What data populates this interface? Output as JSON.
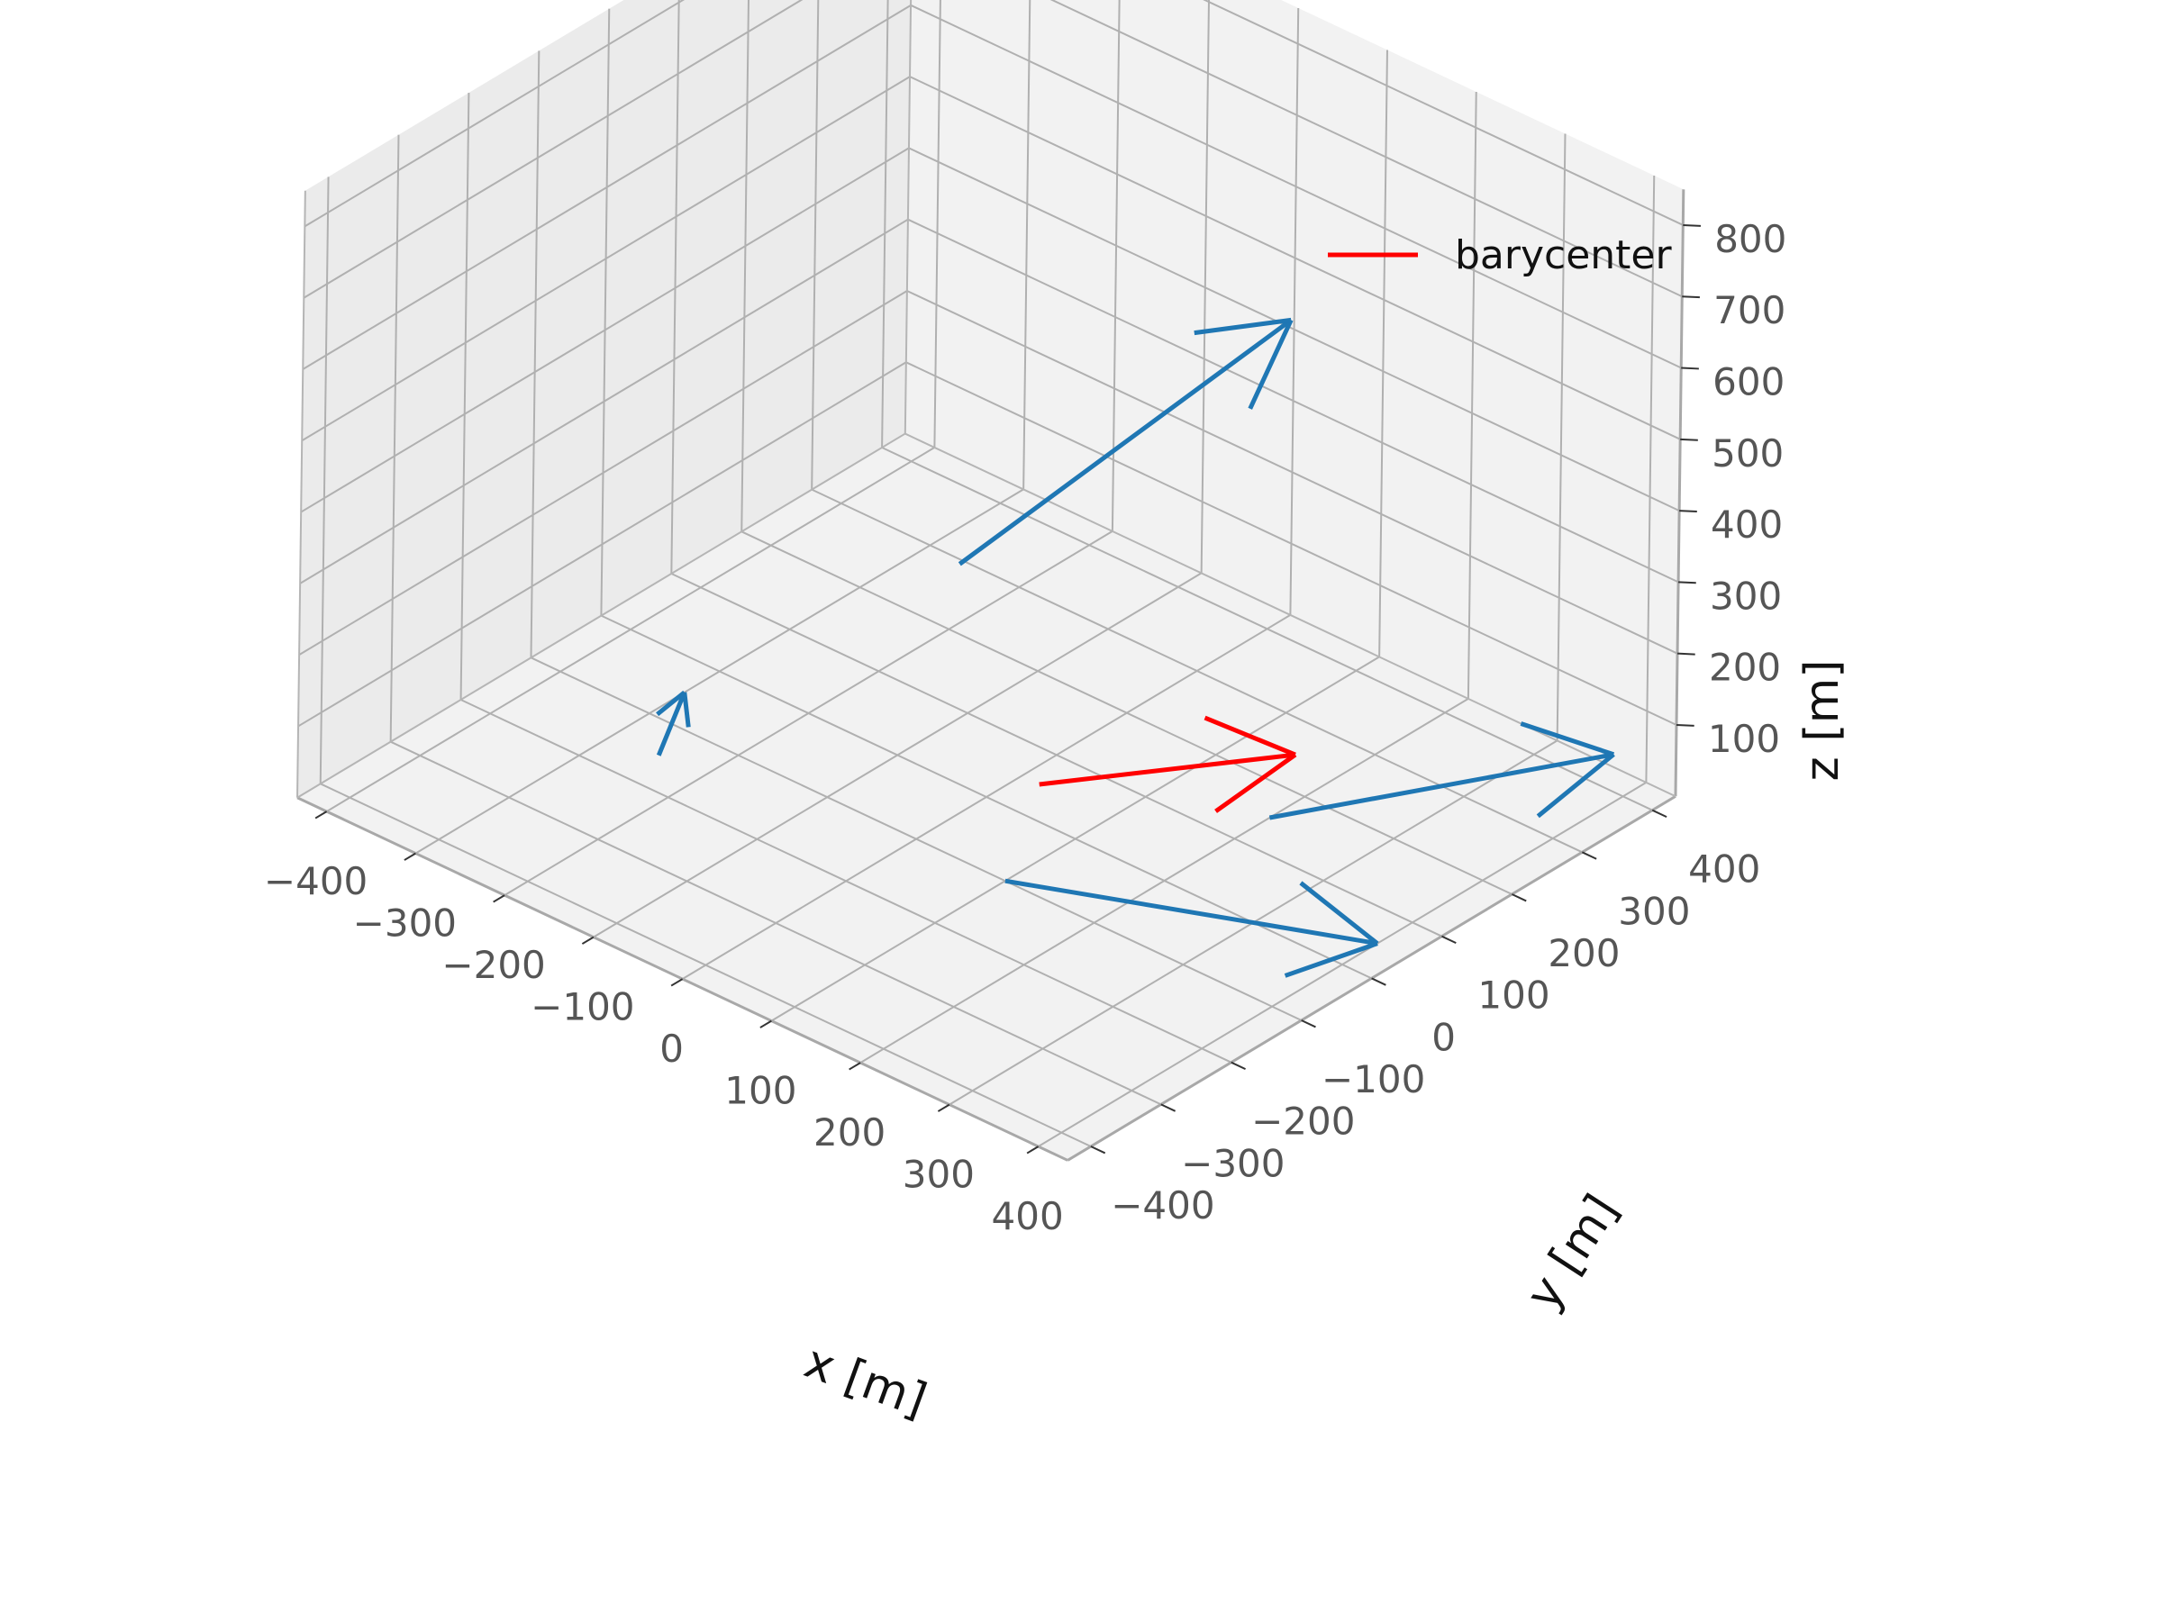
{
  "chart_data": {
    "type": "quiver3d",
    "title": "",
    "xlabel": "x [m]",
    "ylabel": "y [m]",
    "zlabel": "z [m]",
    "xlim": [
      -400,
      400
    ],
    "ylim": [
      -400,
      400
    ],
    "zlim": [
      0,
      850
    ],
    "x_ticks": [
      "−400",
      "−300",
      "−200",
      "−100",
      "0",
      "100",
      "200",
      "300",
      "400"
    ],
    "y_ticks": [
      "−400",
      "−300",
      "−200",
      "−100",
      "0",
      "100",
      "200",
      "300",
      "400"
    ],
    "z_ticks": [
      "100",
      "200",
      "300",
      "400",
      "500",
      "600",
      "700",
      "800"
    ],
    "grid": true,
    "legend": {
      "position": "upper-right",
      "entries": [
        {
          "label": "barycenter",
          "color": "#ff0000"
        }
      ]
    },
    "series": [
      {
        "name": "",
        "color": "#1f77b4",
        "vectors": [
          {
            "start": [
              -150,
              150,
              150
            ],
            "end": [
              100,
              300,
              550
            ]
          },
          {
            "start": [
              -250,
              -150,
              0
            ],
            "end": [
              -300,
              -50,
              0
            ]
          },
          {
            "start": [
              200,
              150,
              0
            ],
            "end": [
              350,
              450,
              0
            ]
          },
          {
            "start": [
              100,
              -100,
              0
            ],
            "end": [
              400,
              50,
              0
            ]
          }
        ]
      },
      {
        "name": "barycenter",
        "color": "#ff0000",
        "vectors": [
          {
            "start": [
              20,
              50,
              0
            ],
            "end": [
              150,
              250,
              0
            ]
          }
        ]
      }
    ]
  }
}
